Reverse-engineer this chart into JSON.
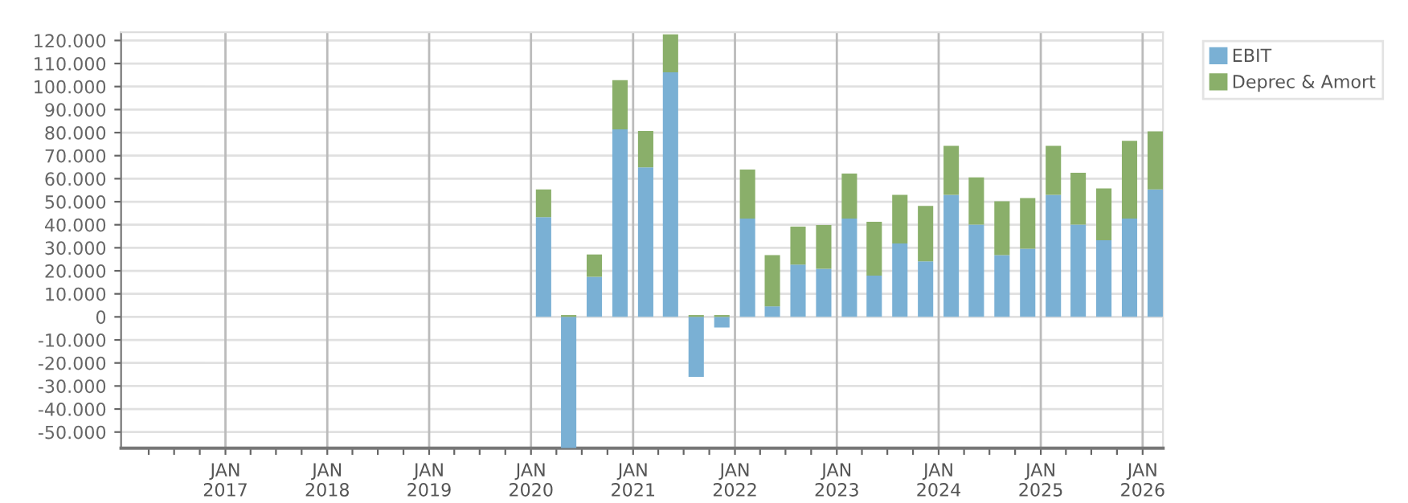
{
  "chart_data": {
    "type": "bar",
    "stacked": true,
    "x": [
      "2020-02-15",
      "2020-05-15",
      "2020-08-15",
      "2020-11-15",
      "2021-02-15",
      "2021-05-15",
      "2021-08-15",
      "2021-11-15",
      "2022-02-15",
      "2022-05-15",
      "2022-08-15",
      "2022-11-15",
      "2023-02-15",
      "2023-05-15",
      "2023-08-15",
      "2023-11-15",
      "2024-02-15",
      "2024-05-15",
      "2024-08-15",
      "2024-11-15",
      "2025-02-15",
      "2025-05-15",
      "2025-08-15",
      "2025-11-15",
      "2026-02-15"
    ],
    "series": [
      {
        "name": "EBIT",
        "color": "#7ab0d4",
        "values": [
          43300,
          -57000,
          17400,
          81400,
          64900,
          106200,
          -26000,
          -4600,
          42700,
          4600,
          22700,
          20900,
          42700,
          17900,
          31900,
          24100,
          53000,
          40100,
          26800,
          29600,
          53000,
          40100,
          33300,
          42700,
          55300
        ]
      },
      {
        "name": "Deprec & Amort",
        "color": "#8aaf6a",
        "values": [
          12000,
          800,
          9700,
          21400,
          15800,
          16500,
          800,
          800,
          21300,
          22200,
          16500,
          19000,
          19500,
          23400,
          21100,
          24100,
          21300,
          20500,
          23400,
          22000,
          21300,
          22500,
          22500,
          33700,
          25200
        ]
      }
    ],
    "xlim": [
      "2015-12-24",
      "2026-03-15"
    ],
    "xticks": [
      {
        "value": "2016-04-01",
        "label": null
      },
      {
        "value": "2016-07-01",
        "label": null
      },
      {
        "value": "2016-10-01",
        "label": null
      },
      {
        "value": "2017-01-01",
        "label": "JAN\n2017"
      },
      {
        "value": "2017-04-01",
        "label": null
      },
      {
        "value": "2017-07-01",
        "label": null
      },
      {
        "value": "2017-10-01",
        "label": null
      },
      {
        "value": "2018-01-01",
        "label": "JAN\n2018"
      },
      {
        "value": "2018-04-01",
        "label": null
      },
      {
        "value": "2018-07-01",
        "label": null
      },
      {
        "value": "2018-10-01",
        "label": null
      },
      {
        "value": "2019-01-01",
        "label": "JAN\n2019"
      },
      {
        "value": "2019-04-01",
        "label": null
      },
      {
        "value": "2019-07-01",
        "label": null
      },
      {
        "value": "2019-10-01",
        "label": null
      },
      {
        "value": "2020-01-01",
        "label": "JAN\n2020"
      },
      {
        "value": "2020-04-01",
        "label": null
      },
      {
        "value": "2020-07-01",
        "label": null
      },
      {
        "value": "2020-10-01",
        "label": null
      },
      {
        "value": "2021-01-01",
        "label": "JAN\n2021"
      },
      {
        "value": "2021-04-01",
        "label": null
      },
      {
        "value": "2021-07-01",
        "label": null
      },
      {
        "value": "2021-10-01",
        "label": null
      },
      {
        "value": "2022-01-01",
        "label": "JAN\n2022"
      },
      {
        "value": "2022-04-01",
        "label": null
      },
      {
        "value": "2022-07-01",
        "label": null
      },
      {
        "value": "2022-10-01",
        "label": null
      },
      {
        "value": "2023-01-01",
        "label": "JAN\n2023"
      },
      {
        "value": "2023-04-01",
        "label": null
      },
      {
        "value": "2023-07-01",
        "label": null
      },
      {
        "value": "2023-10-01",
        "label": null
      },
      {
        "value": "2024-01-01",
        "label": "JAN\n2024"
      },
      {
        "value": "2024-04-01",
        "label": null
      },
      {
        "value": "2024-07-01",
        "label": null
      },
      {
        "value": "2024-10-01",
        "label": null
      },
      {
        "value": "2025-01-01",
        "label": "JAN\n2025"
      },
      {
        "value": "2025-04-01",
        "label": null
      },
      {
        "value": "2025-07-01",
        "label": null
      },
      {
        "value": "2025-10-01",
        "label": null
      },
      {
        "value": "2026-01-01",
        "label": "JAN\n2026"
      }
    ],
    "ylim": [
      -57000,
      123600
    ],
    "yticks": [
      {
        "value": -50000,
        "label": "-50.000"
      },
      {
        "value": -40000,
        "label": "-40.000"
      },
      {
        "value": -30000,
        "label": "-30.000"
      },
      {
        "value": -20000,
        "label": "-20.000"
      },
      {
        "value": -10000,
        "label": "-10.000"
      },
      0,
      {
        "value": 10000,
        "label": "10.000"
      },
      {
        "value": 20000,
        "label": "20.000"
      },
      {
        "value": 30000,
        "label": "30.000"
      },
      {
        "value": 40000,
        "label": "40.000"
      },
      {
        "value": 50000,
        "label": "50.000"
      },
      {
        "value": 60000,
        "label": "60.000"
      },
      {
        "value": 70000,
        "label": "70.000"
      },
      {
        "value": 80000,
        "label": "80.000"
      },
      {
        "value": 90000,
        "label": "90.000"
      },
      {
        "value": 100000,
        "label": "100.000"
      },
      {
        "value": 110000,
        "label": "110.000"
      },
      {
        "value": 120000,
        "label": "120.000"
      }
    ],
    "grid": true,
    "legend": "top right"
  }
}
